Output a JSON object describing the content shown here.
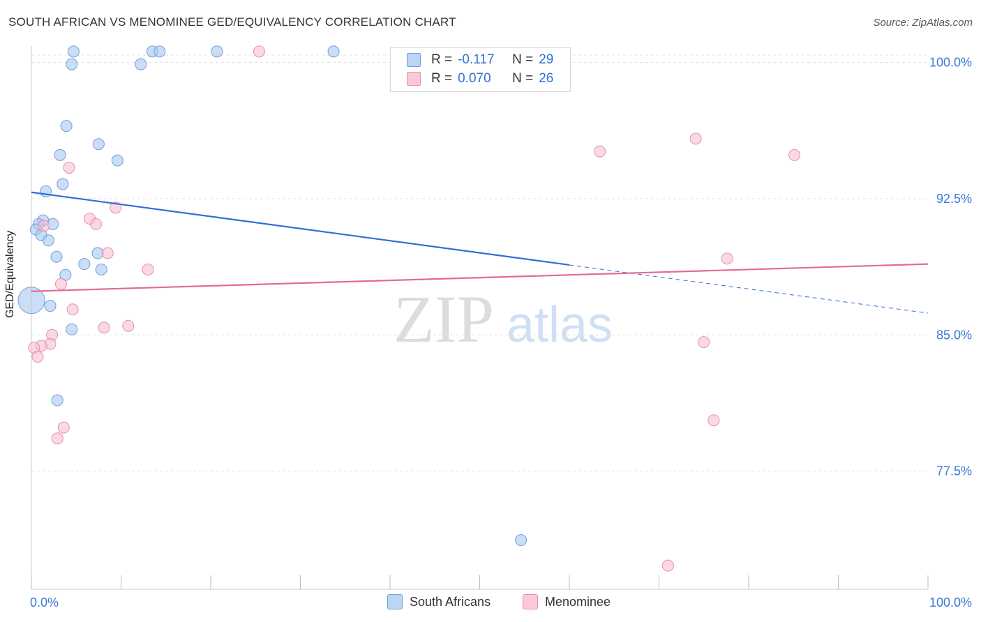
{
  "title": "SOUTH AFRICAN VS MENOMINEE GED/EQUIVALENCY CORRELATION CHART",
  "source": "Source: ZipAtlas.com",
  "watermark": {
    "zip": "ZIP",
    "atlas": "atlas"
  },
  "legend_top": {
    "rows": [
      {
        "r_label": "R =",
        "r_value": "-0.117",
        "n_label": "N =",
        "n_value": "29",
        "color": "#a9c8f0",
        "border": "#6f9fde"
      },
      {
        "r_label": "R =",
        "r_value": "0.070",
        "n_label": "N =",
        "n_value": "26",
        "color": "#f7bfd1",
        "border": "#e88fae"
      }
    ]
  },
  "legend_bottom": [
    {
      "label": "South Africans",
      "color": "#bcd5f5",
      "border": "#6f9fde"
    },
    {
      "label": "Menominee",
      "color": "#f9c9d8",
      "border": "#e88fae"
    }
  ],
  "colors": {
    "blue_line": "#2f6fd6",
    "pink_line": "#e46a96",
    "axis_text": "#3b78d8",
    "grid": "#e3e3e3"
  },
  "chart_data": {
    "type": "scatter",
    "title": "SOUTH AFRICAN VS MENOMINEE GED/EQUIVALENCY CORRELATION CHART",
    "xlabel": "",
    "ylabel": "GED/Equivalency",
    "xlim": [
      0,
      100
    ],
    "ylim": [
      71.0,
      100.9
    ],
    "x_tick_labels": [
      {
        "value": 0,
        "label": "0.0%"
      },
      {
        "value": 100,
        "label": "100.0%"
      }
    ],
    "y_ticks": [
      {
        "value": 100.0,
        "label": "100.0%"
      },
      {
        "value": 92.5,
        "label": "92.5%"
      },
      {
        "value": 85.0,
        "label": "85.0%"
      },
      {
        "value": 77.5,
        "label": "77.5%"
      }
    ],
    "grid": true,
    "series": [
      {
        "name": "South Africans",
        "color": "#a9c8f0",
        "edge": "#6f9fde",
        "points": [
          {
            "x": 4.7,
            "y": 100.6
          },
          {
            "x": 13.5,
            "y": 100.6
          },
          {
            "x": 14.3,
            "y": 100.6
          },
          {
            "x": 20.7,
            "y": 100.6
          },
          {
            "x": 33.7,
            "y": 100.6
          },
          {
            "x": 4.5,
            "y": 99.9
          },
          {
            "x": 12.2,
            "y": 99.9
          },
          {
            "x": 3.9,
            "y": 96.5
          },
          {
            "x": 7.5,
            "y": 95.5
          },
          {
            "x": 3.2,
            "y": 94.9
          },
          {
            "x": 9.6,
            "y": 94.6
          },
          {
            "x": 3.5,
            "y": 93.3
          },
          {
            "x": 1.6,
            "y": 92.9
          },
          {
            "x": 1.3,
            "y": 91.3
          },
          {
            "x": 0.8,
            "y": 91.1
          },
          {
            "x": 2.4,
            "y": 91.1
          },
          {
            "x": 0.5,
            "y": 90.8
          },
          {
            "x": 1.1,
            "y": 90.5
          },
          {
            "x": 1.9,
            "y": 90.2
          },
          {
            "x": 7.4,
            "y": 89.5
          },
          {
            "x": 2.8,
            "y": 89.3
          },
          {
            "x": 5.9,
            "y": 88.9
          },
          {
            "x": 7.8,
            "y": 88.6
          },
          {
            "x": 3.8,
            "y": 88.3
          },
          {
            "x": 0.0,
            "y": 86.9,
            "size": "large"
          },
          {
            "x": 2.1,
            "y": 86.6
          },
          {
            "x": 4.5,
            "y": 85.3
          },
          {
            "x": 2.9,
            "y": 81.4
          },
          {
            "x": 54.6,
            "y": 73.7
          }
        ],
        "trend": {
          "x0": 0,
          "y0": 92.85,
          "x1": 60,
          "y1": 88.85,
          "dashed_to_x": 100,
          "dashed_to_y": 86.2
        }
      },
      {
        "name": "Menominee",
        "color": "#f7bfd1",
        "edge": "#e88fae",
        "points": [
          {
            "x": 25.4,
            "y": 100.6
          },
          {
            "x": 74.1,
            "y": 95.8
          },
          {
            "x": 63.4,
            "y": 95.1
          },
          {
            "x": 85.1,
            "y": 94.9
          },
          {
            "x": 4.2,
            "y": 94.2
          },
          {
            "x": 9.4,
            "y": 92.0
          },
          {
            "x": 6.5,
            "y": 91.4
          },
          {
            "x": 7.2,
            "y": 91.1
          },
          {
            "x": 1.4,
            "y": 91.0
          },
          {
            "x": 8.5,
            "y": 89.5
          },
          {
            "x": 77.6,
            "y": 89.2
          },
          {
            "x": 13.0,
            "y": 88.6
          },
          {
            "x": 3.3,
            "y": 87.8
          },
          {
            "x": 4.6,
            "y": 86.4
          },
          {
            "x": 10.8,
            "y": 85.5
          },
          {
            "x": 8.1,
            "y": 85.4
          },
          {
            "x": 2.3,
            "y": 85.0
          },
          {
            "x": 2.1,
            "y": 84.5
          },
          {
            "x": 1.1,
            "y": 84.4
          },
          {
            "x": 0.3,
            "y": 84.3
          },
          {
            "x": 0.7,
            "y": 83.8
          },
          {
            "x": 75.0,
            "y": 84.6
          },
          {
            "x": 3.6,
            "y": 79.9
          },
          {
            "x": 2.9,
            "y": 79.3
          },
          {
            "x": 76.1,
            "y": 80.3
          },
          {
            "x": 71.0,
            "y": 72.3
          }
        ],
        "trend": {
          "x0": 0,
          "y0": 87.4,
          "x1": 100,
          "y1": 88.9
        }
      }
    ]
  }
}
